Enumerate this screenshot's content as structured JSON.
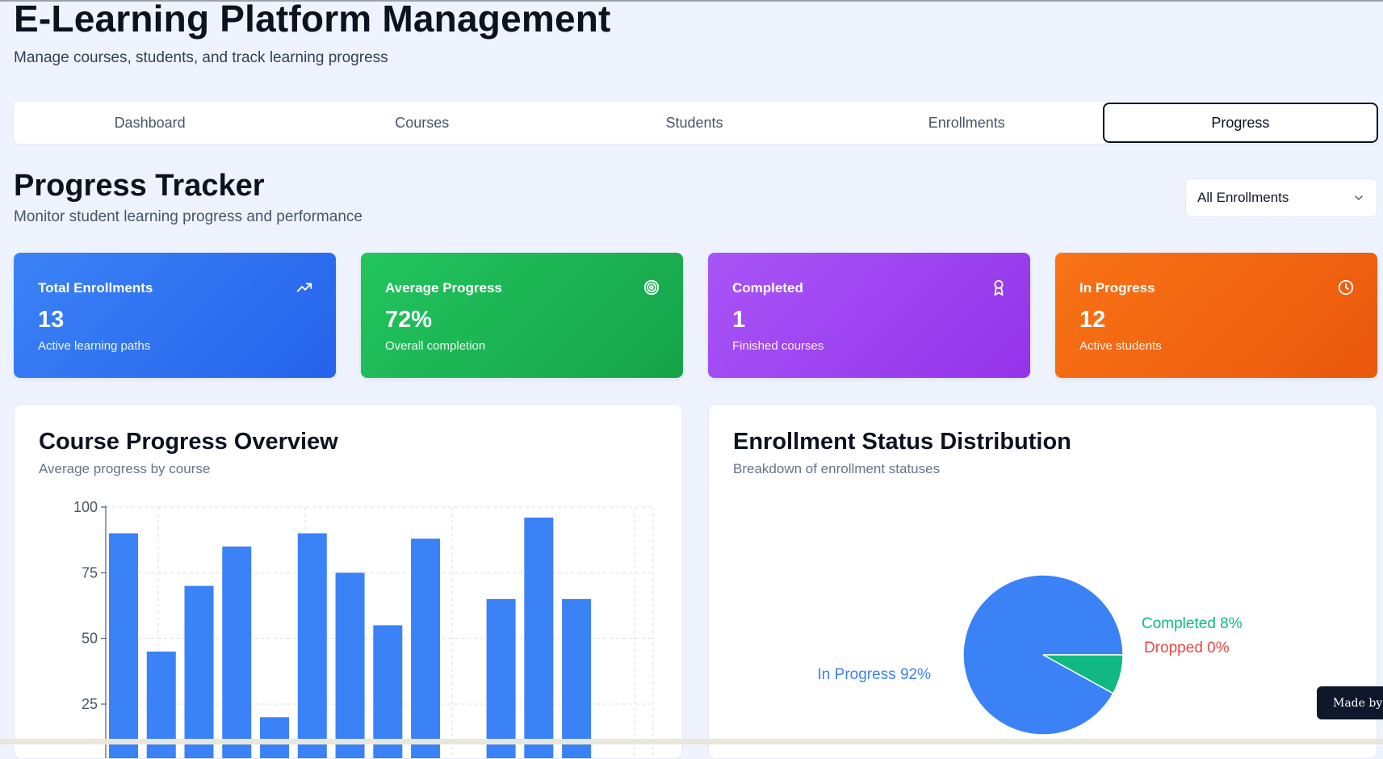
{
  "header": {
    "title": "E-Learning Platform Management",
    "subtitle": "Manage courses, students, and track learning progress"
  },
  "tabs": [
    {
      "label": "Dashboard",
      "active": false
    },
    {
      "label": "Courses",
      "active": false
    },
    {
      "label": "Students",
      "active": false
    },
    {
      "label": "Enrollments",
      "active": false
    },
    {
      "label": "Progress",
      "active": true
    }
  ],
  "section": {
    "title": "Progress Tracker",
    "subtitle": "Monitor student learning progress and performance"
  },
  "filter": {
    "selected": "All Enrollments",
    "icon": "chevron-down-icon"
  },
  "stats": [
    {
      "label": "Total Enrollments",
      "value": "13",
      "note": "Active learning paths",
      "icon": "trending-up-icon",
      "color": "#3b82f6"
    },
    {
      "label": "Average Progress",
      "value": "72%",
      "note": "Overall completion",
      "icon": "target-icon",
      "color": "#22c55e"
    },
    {
      "label": "Completed",
      "value": "1",
      "note": "Finished courses",
      "icon": "award-icon",
      "color": "#a855f7"
    },
    {
      "label": "In Progress",
      "value": "12",
      "note": "Active students",
      "icon": "clock-icon",
      "color": "#f97316"
    }
  ],
  "course_panel": {
    "title": "Course Progress Overview",
    "subtitle": "Average progress by course"
  },
  "status_panel": {
    "title": "Enrollment Status Distribution",
    "subtitle": "Breakdown of enrollment statuses"
  },
  "chart_data": [
    {
      "type": "bar",
      "values": [
        90,
        45,
        70,
        85,
        20,
        90,
        75,
        55,
        88,
        null,
        65,
        96,
        65
      ],
      "yticks": [
        25,
        50,
        75,
        100
      ],
      "ylim": [
        0,
        100
      ],
      "grid": true,
      "color": "#3b82f6"
    },
    {
      "type": "pie",
      "slices": [
        {
          "label": "In Progress 92%",
          "value": 92,
          "color": "#3b82f6"
        },
        {
          "label": "Completed 8%",
          "value": 8,
          "color": "#10b981"
        },
        {
          "label": "Dropped 0%",
          "value": 0,
          "color": "#ef4444"
        }
      ]
    }
  ],
  "badge": {
    "text": "Made by"
  }
}
